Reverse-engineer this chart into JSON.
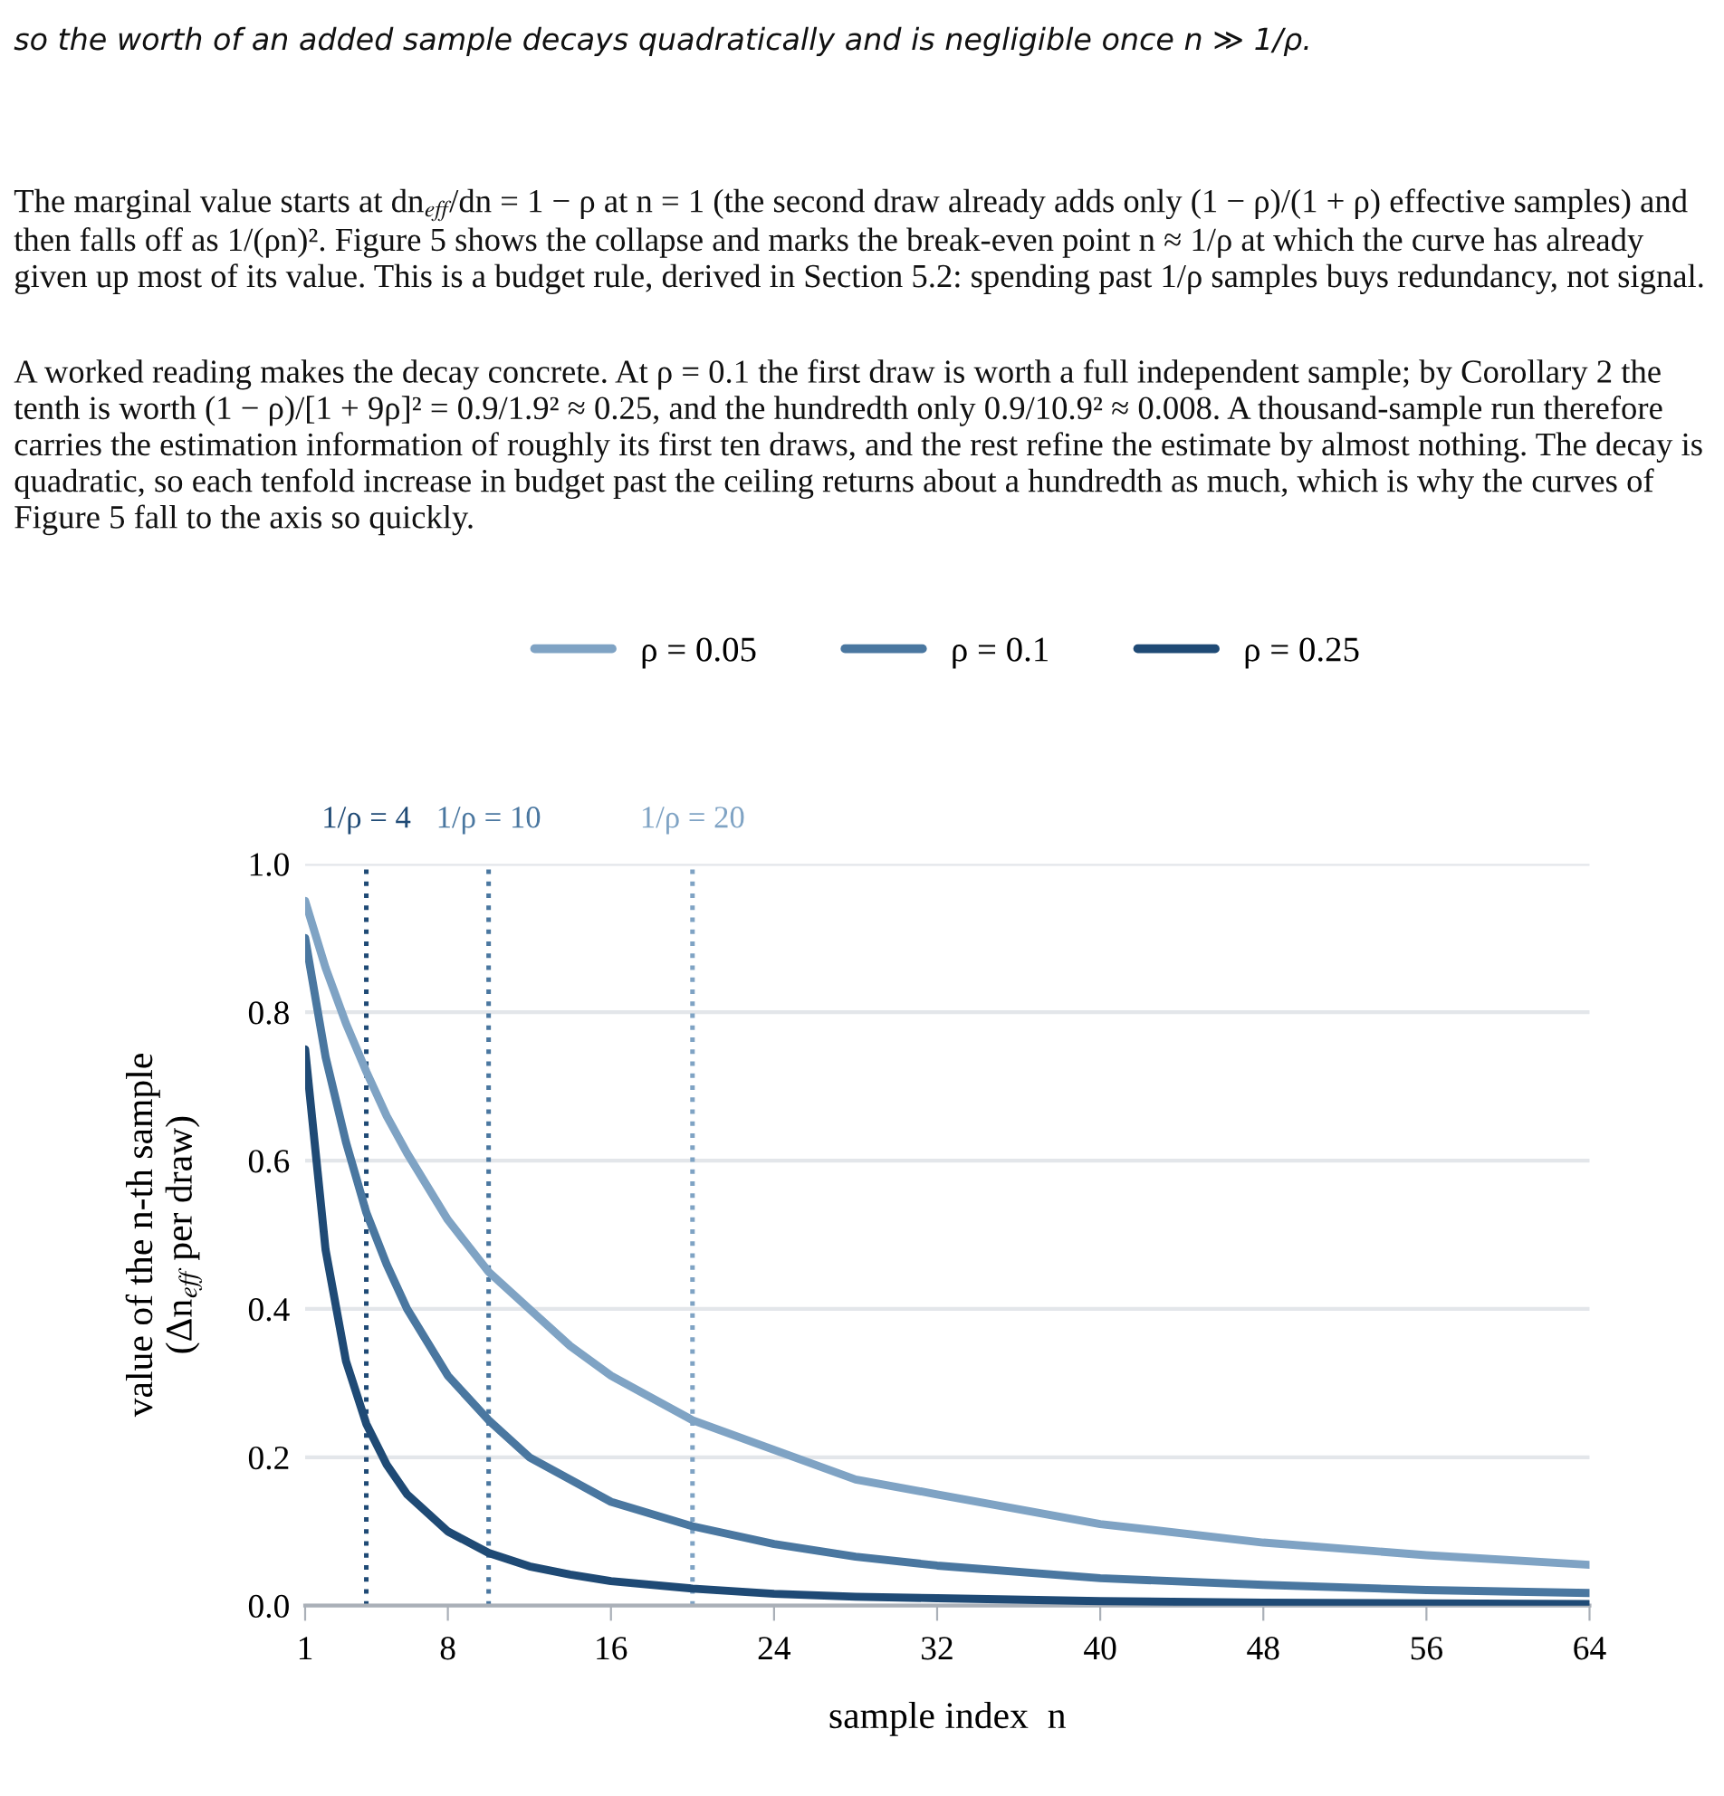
{
  "chart_data": {
    "type": "line",
    "annotations": [
      "so the worth of an added sample decays quadratically and is negligible once n ≫ 1/ρ.",
      "The marginal value starts at dn$_{eff}$/dn = 1 − ρ at n = 1 (the second draw already adds only (1 − ρ)/(1 + ρ) effective samples) and then falls off as 1/(ρn)². Figure 5 shows the collapse and marks the break-even point n ≈ 1/ρ at which the curve has already given up most of its value. This is a budget rule, derived in Section 5.2: spending past 1/ρ samples buys redundancy, not signal.",
      "A worked reading makes the decay concrete. At ρ = 0.1 the first draw is worth a full independent sample; by Corollary 2 the tenth is worth (1 − ρ)/[1 + 9ρ]² = 0.9/1.9² ≈ 0.25, and the hundredth only 0.9/10.9² ≈ 0.008. A thousand-sample run therefore carries the estimation information of roughly its first ten draws, and the rest refine the estimate by almost nothing. The decay is quadratic, so each tenfold increase in budget past the ceiling returns about a hundredth as much, which is why the curves of Figure 5 fall to the axis so quickly."
    ],
    "xlabel": "sample index  n",
    "ylabel": "value of the n-th sample\n(Δn$_{eff}$ per draw)",
    "x": [
      1,
      2,
      3,
      4,
      5,
      6,
      8,
      10,
      12,
      14,
      16,
      20,
      24,
      28,
      32,
      40,
      48,
      56,
      64
    ],
    "series": [
      {
        "name": "ρ = 0.05",
        "color": "#7fa3c4",
        "values": [
          0.95,
          0.86,
          0.785,
          0.72,
          0.66,
          0.61,
          0.52,
          0.45,
          0.4,
          0.35,
          0.31,
          0.25,
          0.21,
          0.17,
          0.15,
          0.11,
          0.085,
          0.068,
          0.055
        ]
      },
      {
        "name": "ρ = 0.1",
        "color": "#4a77a0",
        "values": [
          0.9,
          0.74,
          0.625,
          0.53,
          0.46,
          0.4,
          0.31,
          0.25,
          0.2,
          0.17,
          0.14,
          0.107,
          0.083,
          0.066,
          0.054,
          0.037,
          0.028,
          0.021,
          0.017
        ]
      },
      {
        "name": "ρ = 0.25",
        "color": "#1f4a75",
        "values": [
          0.75,
          0.48,
          0.33,
          0.245,
          0.19,
          0.15,
          0.1,
          0.071,
          0.053,
          0.042,
          0.033,
          0.023,
          0.016,
          0.012,
          0.01,
          0.006,
          0.004,
          0.003,
          0.002
        ]
      }
    ],
    "xlim": [
      1,
      64
    ],
    "xticks": [
      1,
      8,
      16,
      24,
      32,
      40,
      48,
      56,
      64
    ],
    "ylim": [
      0,
      1
    ],
    "yticks": [
      {
        "value": 0,
        "label": "0.0"
      },
      {
        "value": 0.2,
        "label": "0.2"
      },
      {
        "value": 0.4,
        "label": "0.4"
      },
      {
        "value": 0.6,
        "label": "0.6"
      },
      {
        "value": 0.8,
        "label": "0.8"
      },
      {
        "value": 1,
        "label": "1.0"
      }
    ],
    "ref_lines": [
      {
        "axis": "x",
        "value": 4,
        "label": "1/ρ = 4",
        "color": "#1f4a75",
        "line_style": "dotted"
      },
      {
        "axis": "x",
        "value": 10,
        "label": "1/ρ = 10",
        "color": "#4a77a0",
        "line_style": "dotted"
      },
      {
        "axis": "x",
        "value": 20,
        "label": "1/ρ = 20",
        "color": "#7fa3c4",
        "line_style": "dotted"
      }
    ],
    "grid": "y",
    "legend": "top",
    "marker": "none",
    "line_style": "solid"
  }
}
